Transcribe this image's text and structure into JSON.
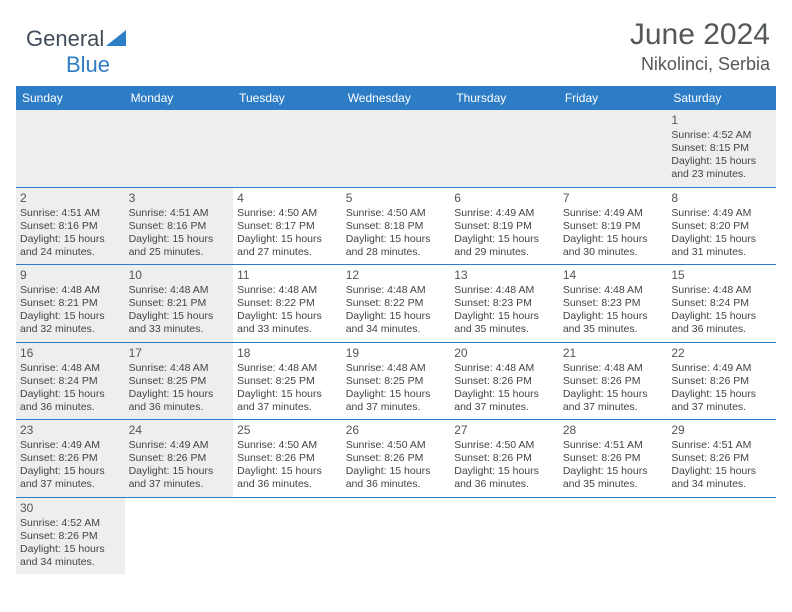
{
  "logo": {
    "text1": "General",
    "text2": "Blue",
    "color1": "#414c5a",
    "color2": "#2d7dc6"
  },
  "title": {
    "month": "June 2024",
    "location": "Nikolinci, Serbia"
  },
  "colors": {
    "header_bg": "#2d7dc6",
    "header_text": "#ffffff",
    "row_gray": "#eeeeee",
    "border": "#2d7dc6",
    "text": "#444444"
  },
  "weekdays": [
    "Sunday",
    "Monday",
    "Tuesday",
    "Wednesday",
    "Thursday",
    "Friday",
    "Saturday"
  ],
  "weeks": [
    [
      null,
      null,
      null,
      null,
      null,
      null,
      {
        "n": "1",
        "sr": "Sunrise: 4:52 AM",
        "ss": "Sunset: 8:15 PM",
        "d1": "Daylight: 15 hours",
        "d2": "and 23 minutes.",
        "gray": true
      }
    ],
    [
      {
        "n": "2",
        "sr": "Sunrise: 4:51 AM",
        "ss": "Sunset: 8:16 PM",
        "d1": "Daylight: 15 hours",
        "d2": "and 24 minutes.",
        "gray": true
      },
      {
        "n": "3",
        "sr": "Sunrise: 4:51 AM",
        "ss": "Sunset: 8:16 PM",
        "d1": "Daylight: 15 hours",
        "d2": "and 25 minutes.",
        "gray": true
      },
      {
        "n": "4",
        "sr": "Sunrise: 4:50 AM",
        "ss": "Sunset: 8:17 PM",
        "d1": "Daylight: 15 hours",
        "d2": "and 27 minutes."
      },
      {
        "n": "5",
        "sr": "Sunrise: 4:50 AM",
        "ss": "Sunset: 8:18 PM",
        "d1": "Daylight: 15 hours",
        "d2": "and 28 minutes."
      },
      {
        "n": "6",
        "sr": "Sunrise: 4:49 AM",
        "ss": "Sunset: 8:19 PM",
        "d1": "Daylight: 15 hours",
        "d2": "and 29 minutes."
      },
      {
        "n": "7",
        "sr": "Sunrise: 4:49 AM",
        "ss": "Sunset: 8:19 PM",
        "d1": "Daylight: 15 hours",
        "d2": "and 30 minutes."
      },
      {
        "n": "8",
        "sr": "Sunrise: 4:49 AM",
        "ss": "Sunset: 8:20 PM",
        "d1": "Daylight: 15 hours",
        "d2": "and 31 minutes."
      }
    ],
    [
      {
        "n": "9",
        "sr": "Sunrise: 4:48 AM",
        "ss": "Sunset: 8:21 PM",
        "d1": "Daylight: 15 hours",
        "d2": "and 32 minutes.",
        "gray": true
      },
      {
        "n": "10",
        "sr": "Sunrise: 4:48 AM",
        "ss": "Sunset: 8:21 PM",
        "d1": "Daylight: 15 hours",
        "d2": "and 33 minutes.",
        "gray": true
      },
      {
        "n": "11",
        "sr": "Sunrise: 4:48 AM",
        "ss": "Sunset: 8:22 PM",
        "d1": "Daylight: 15 hours",
        "d2": "and 33 minutes."
      },
      {
        "n": "12",
        "sr": "Sunrise: 4:48 AM",
        "ss": "Sunset: 8:22 PM",
        "d1": "Daylight: 15 hours",
        "d2": "and 34 minutes."
      },
      {
        "n": "13",
        "sr": "Sunrise: 4:48 AM",
        "ss": "Sunset: 8:23 PM",
        "d1": "Daylight: 15 hours",
        "d2": "and 35 minutes."
      },
      {
        "n": "14",
        "sr": "Sunrise: 4:48 AM",
        "ss": "Sunset: 8:23 PM",
        "d1": "Daylight: 15 hours",
        "d2": "and 35 minutes."
      },
      {
        "n": "15",
        "sr": "Sunrise: 4:48 AM",
        "ss": "Sunset: 8:24 PM",
        "d1": "Daylight: 15 hours",
        "d2": "and 36 minutes."
      }
    ],
    [
      {
        "n": "16",
        "sr": "Sunrise: 4:48 AM",
        "ss": "Sunset: 8:24 PM",
        "d1": "Daylight: 15 hours",
        "d2": "and 36 minutes.",
        "gray": true
      },
      {
        "n": "17",
        "sr": "Sunrise: 4:48 AM",
        "ss": "Sunset: 8:25 PM",
        "d1": "Daylight: 15 hours",
        "d2": "and 36 minutes.",
        "gray": true
      },
      {
        "n": "18",
        "sr": "Sunrise: 4:48 AM",
        "ss": "Sunset: 8:25 PM",
        "d1": "Daylight: 15 hours",
        "d2": "and 37 minutes."
      },
      {
        "n": "19",
        "sr": "Sunrise: 4:48 AM",
        "ss": "Sunset: 8:25 PM",
        "d1": "Daylight: 15 hours",
        "d2": "and 37 minutes."
      },
      {
        "n": "20",
        "sr": "Sunrise: 4:48 AM",
        "ss": "Sunset: 8:26 PM",
        "d1": "Daylight: 15 hours",
        "d2": "and 37 minutes."
      },
      {
        "n": "21",
        "sr": "Sunrise: 4:48 AM",
        "ss": "Sunset: 8:26 PM",
        "d1": "Daylight: 15 hours",
        "d2": "and 37 minutes."
      },
      {
        "n": "22",
        "sr": "Sunrise: 4:49 AM",
        "ss": "Sunset: 8:26 PM",
        "d1": "Daylight: 15 hours",
        "d2": "and 37 minutes."
      }
    ],
    [
      {
        "n": "23",
        "sr": "Sunrise: 4:49 AM",
        "ss": "Sunset: 8:26 PM",
        "d1": "Daylight: 15 hours",
        "d2": "and 37 minutes.",
        "gray": true
      },
      {
        "n": "24",
        "sr": "Sunrise: 4:49 AM",
        "ss": "Sunset: 8:26 PM",
        "d1": "Daylight: 15 hours",
        "d2": "and 37 minutes.",
        "gray": true
      },
      {
        "n": "25",
        "sr": "Sunrise: 4:50 AM",
        "ss": "Sunset: 8:26 PM",
        "d1": "Daylight: 15 hours",
        "d2": "and 36 minutes."
      },
      {
        "n": "26",
        "sr": "Sunrise: 4:50 AM",
        "ss": "Sunset: 8:26 PM",
        "d1": "Daylight: 15 hours",
        "d2": "and 36 minutes."
      },
      {
        "n": "27",
        "sr": "Sunrise: 4:50 AM",
        "ss": "Sunset: 8:26 PM",
        "d1": "Daylight: 15 hours",
        "d2": "and 36 minutes."
      },
      {
        "n": "28",
        "sr": "Sunrise: 4:51 AM",
        "ss": "Sunset: 8:26 PM",
        "d1": "Daylight: 15 hours",
        "d2": "and 35 minutes."
      },
      {
        "n": "29",
        "sr": "Sunrise: 4:51 AM",
        "ss": "Sunset: 8:26 PM",
        "d1": "Daylight: 15 hours",
        "d2": "and 34 minutes."
      }
    ],
    [
      {
        "n": "30",
        "sr": "Sunrise: 4:52 AM",
        "ss": "Sunset: 8:26 PM",
        "d1": "Daylight: 15 hours",
        "d2": "and 34 minutes.",
        "gray": true,
        "noborder": true
      },
      {
        "noborder": true,
        "blank": true
      },
      {
        "noborder": true,
        "blank": true
      },
      {
        "noborder": true,
        "blank": true
      },
      {
        "noborder": true,
        "blank": true
      },
      {
        "noborder": true,
        "blank": true
      },
      {
        "noborder": true,
        "blank": true
      }
    ]
  ]
}
